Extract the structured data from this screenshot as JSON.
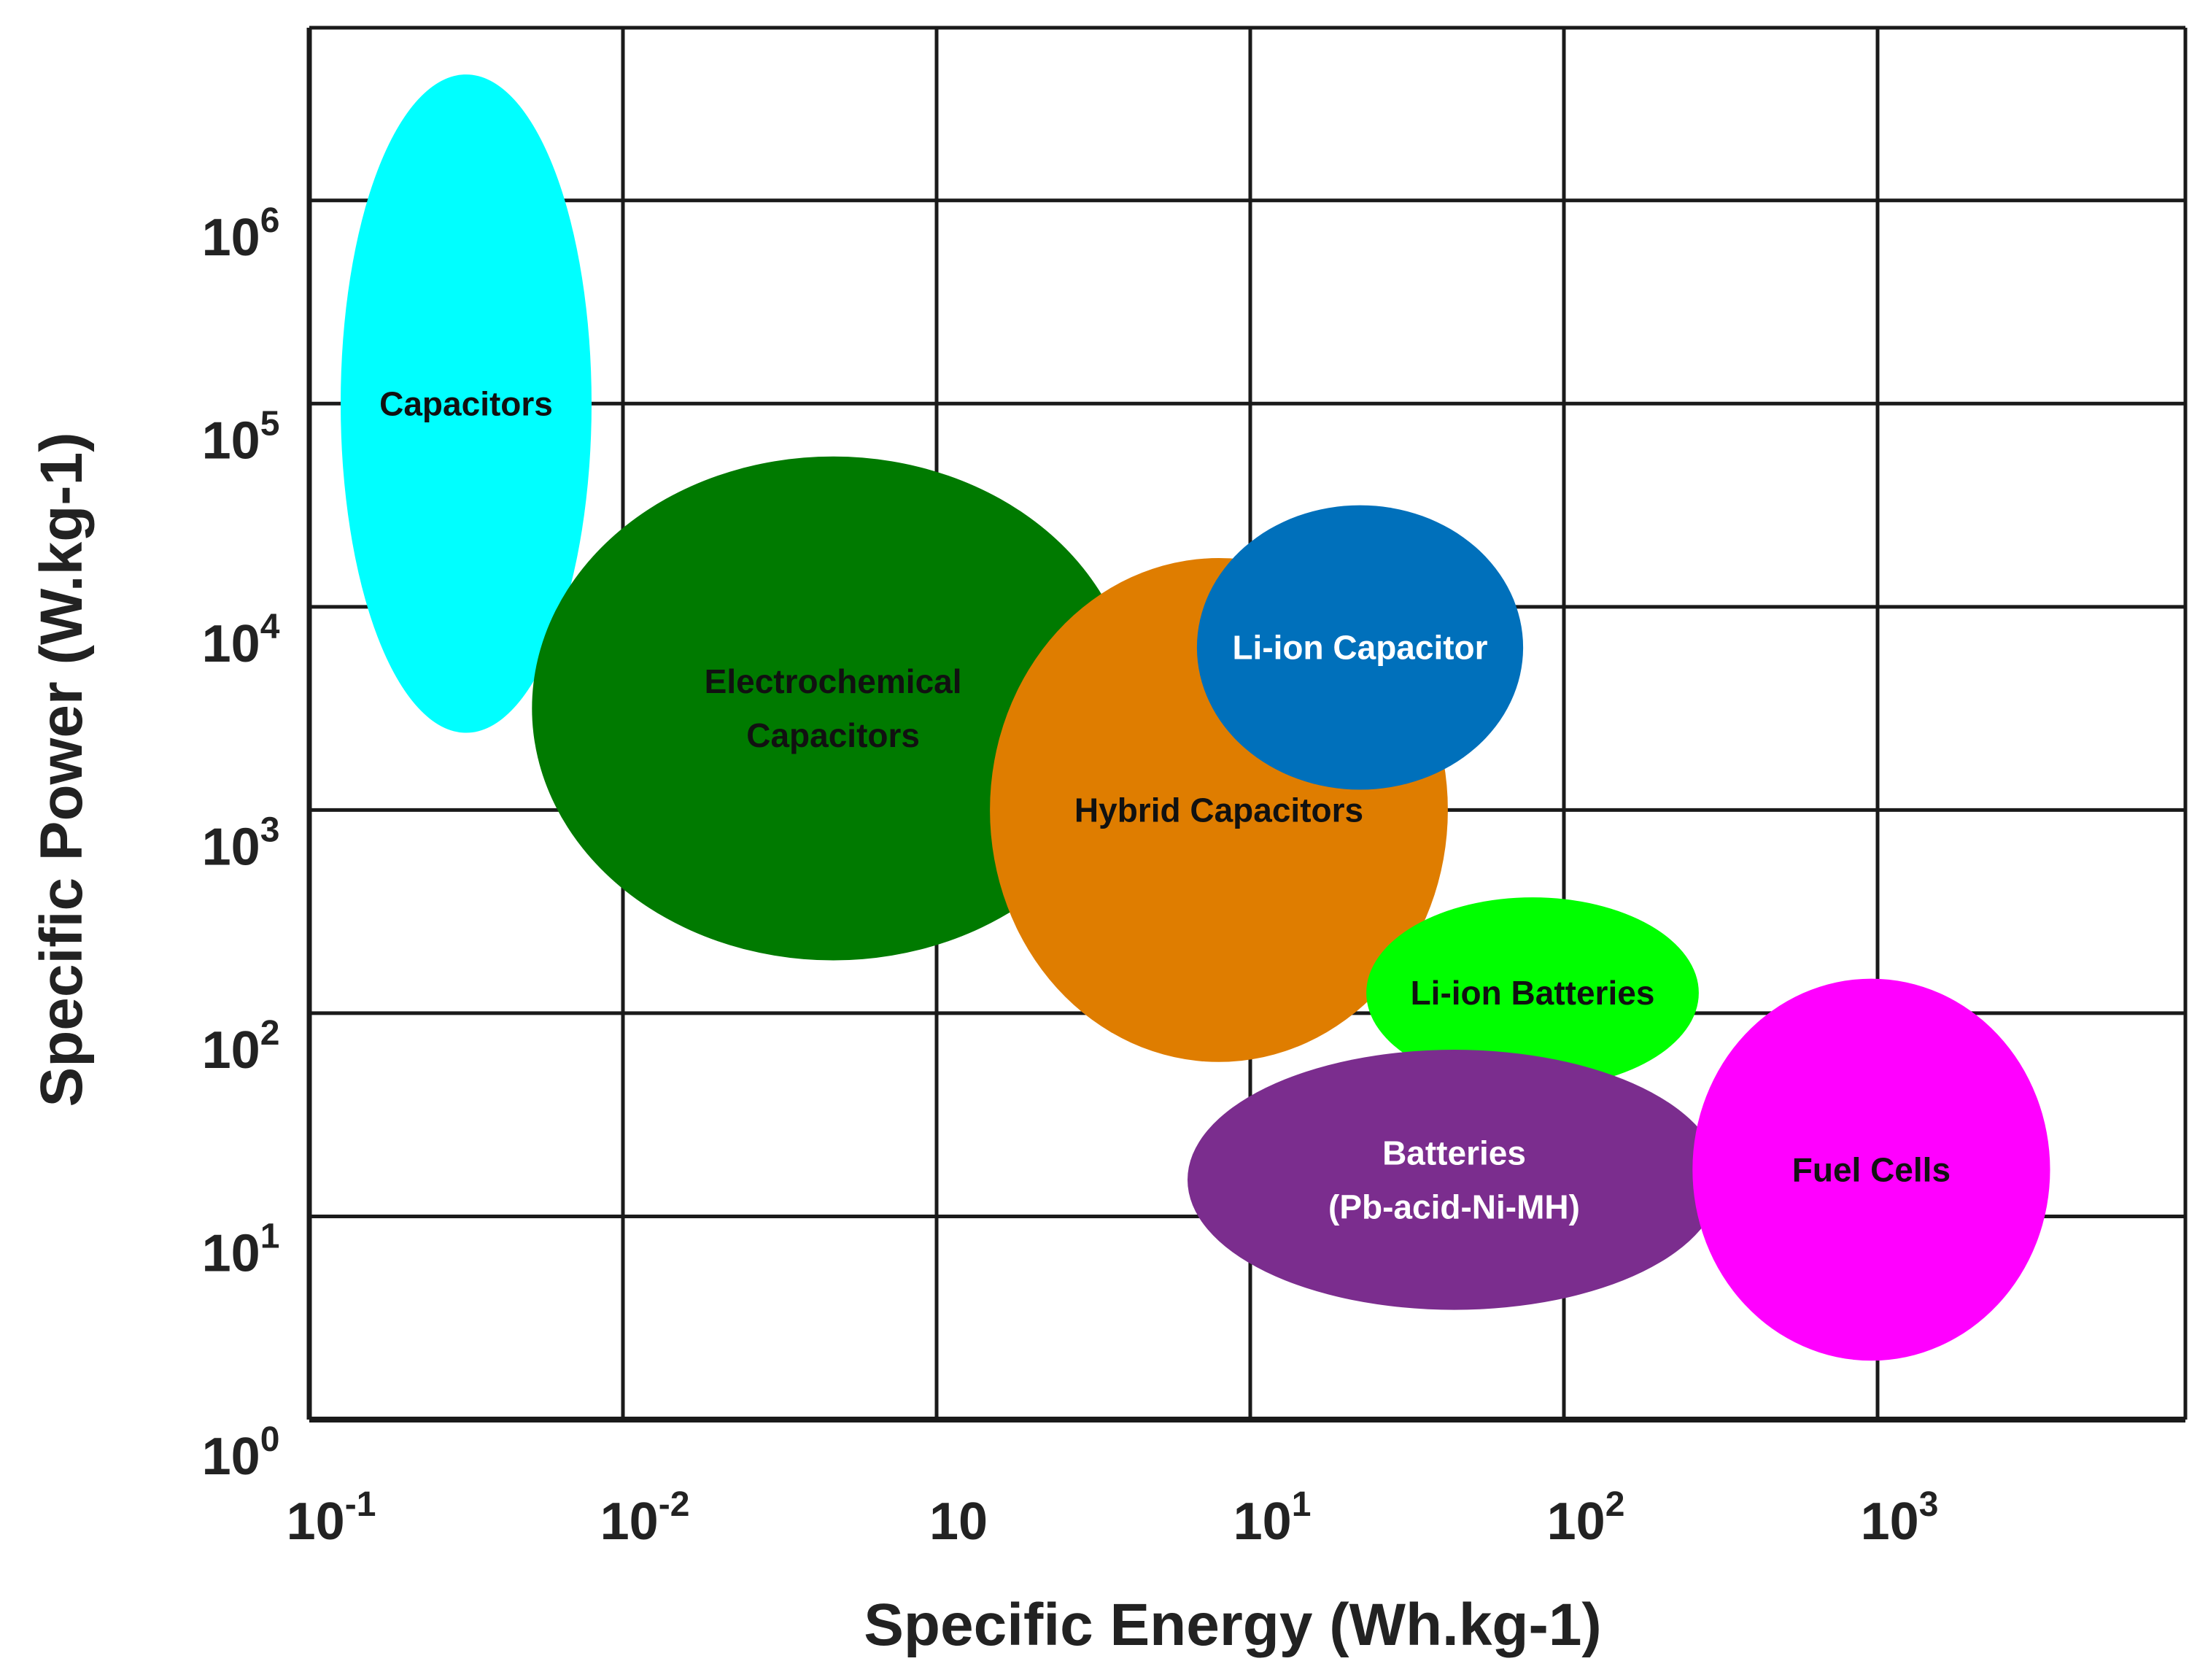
{
  "chart_data": {
    "type": "bubble-region",
    "xlabel": "Specific Energy (Wh.kg-1)",
    "ylabel": "Specific Power (W.kg-1)",
    "x_ticks": [
      {
        "base": "10",
        "exp": "-1"
      },
      {
        "base": "10",
        "exp": "-2"
      },
      {
        "base": "10",
        "exp": ""
      },
      {
        "base": "10",
        "exp": "1"
      },
      {
        "base": "10",
        "exp": "2"
      },
      {
        "base": "10",
        "exp": "3"
      }
    ],
    "y_ticks": [
      {
        "base": "10",
        "exp": "0"
      },
      {
        "base": "10",
        "exp": "1"
      },
      {
        "base": "10",
        "exp": "2"
      },
      {
        "base": "10",
        "exp": "3"
      },
      {
        "base": "10",
        "exp": "4"
      },
      {
        "base": "10",
        "exp": "5"
      },
      {
        "base": "10",
        "exp": "6"
      }
    ],
    "x_range_ticks": [
      0,
      6
    ],
    "y_range_decades": [
      0,
      6.85
    ],
    "grid": true,
    "regions": [
      {
        "label": [
          "Capacitors"
        ],
        "color": "#00FFFF",
        "text_color": "#111111",
        "x": 0.5,
        "y": 5.0,
        "rx": 0.4,
        "ry": 1.62
      },
      {
        "label": [
          "Electrochemical",
          "Capacitors"
        ],
        "color": "#007A00",
        "text_color": "#111111",
        "x": 1.67,
        "y": 3.5,
        "rx": 0.96,
        "ry": 1.24
      },
      {
        "label": [
          "Hybrid Capacitors"
        ],
        "color": "#DF7D00",
        "text_color": "#111111",
        "x": 2.9,
        "y": 3.0,
        "rx": 0.73,
        "ry": 1.24
      },
      {
        "label": [
          "Li-ion Capacitor"
        ],
        "color": "#0070BB",
        "text_color": "#FFFFFF",
        "x": 3.35,
        "y": 3.8,
        "rx": 0.52,
        "ry": 0.7
      },
      {
        "label": [
          "Li-ion Batteries"
        ],
        "color": "#00FF00",
        "text_color": "#111111",
        "x": 3.9,
        "y": 2.1,
        "rx": 0.53,
        "ry": 0.47
      },
      {
        "label": [
          "Batteries",
          "(Pb-acid-Ni-MH)"
        ],
        "color": "#7B2D8E",
        "text_color": "#FFFFFF",
        "x": 3.65,
        "y": 1.18,
        "rx": 0.85,
        "ry": 0.64
      },
      {
        "label": [
          "Fuel Cells"
        ],
        "color": "#FF00FF",
        "text_color": "#111111",
        "x": 4.98,
        "y": 1.23,
        "rx": 0.57,
        "ry": 0.94
      }
    ]
  }
}
